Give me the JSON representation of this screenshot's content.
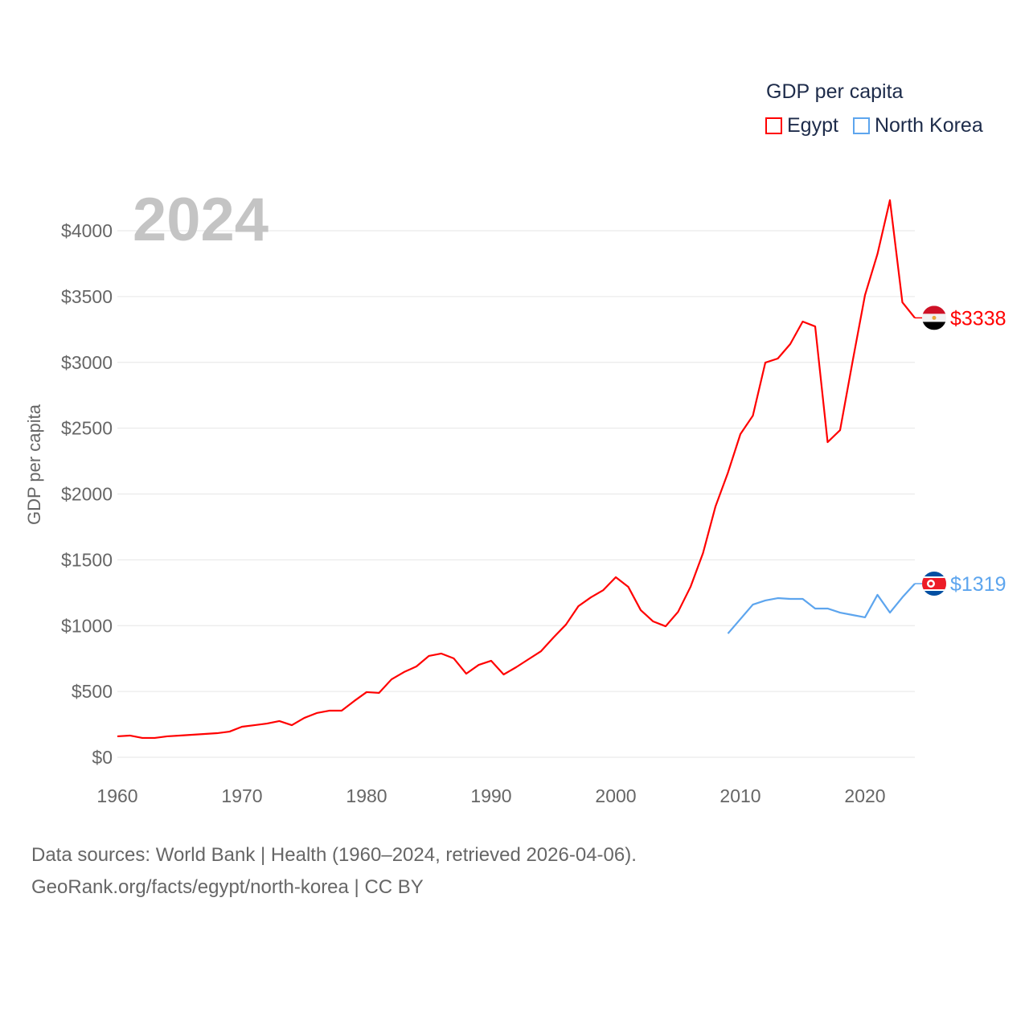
{
  "chart_data": {
    "type": "line",
    "title": "GDP per capita",
    "year_label": "2024",
    "ylabel": "GDP per capita",
    "xlabel": "",
    "xlim": [
      1960,
      2024
    ],
    "ylim": [
      0,
      4000
    ],
    "x_ticks": [
      1960,
      1970,
      1980,
      1990,
      2000,
      2010,
      2020
    ],
    "y_ticks": [
      0,
      500,
      1000,
      1500,
      2000,
      2500,
      3000,
      3500,
      4000
    ],
    "y_tick_labels": [
      "$0",
      "$500",
      "$1000",
      "$1500",
      "$2000",
      "$2500",
      "$3000",
      "$3500",
      "$4000"
    ],
    "grid": true,
    "legend_position": "top-right",
    "series": [
      {
        "name": "Egypt",
        "color": "#ff0000",
        "end_label": "$3338",
        "start_year": 1960,
        "values": [
          159,
          165,
          147,
          147,
          159,
          165,
          171,
          177,
          183,
          195,
          232,
          244,
          256,
          275,
          244,
          299,
          336,
          354,
          354,
          427,
          495,
          489,
          592,
          647,
          690,
          770,
          788,
          751,
          635,
          702,
          733,
          629,
          684,
          745,
          806,
          910,
          1008,
          1148,
          1215,
          1270,
          1368,
          1295,
          1118,
          1032,
          995,
          1105,
          1295,
          1551,
          1905,
          2162,
          2455,
          2595,
          2998,
          3029,
          3139,
          3310,
          3273,
          2394,
          2485,
          3005,
          3511,
          3823,
          4232,
          3456,
          3338
        ]
      },
      {
        "name": "North Korea",
        "color": "#5da5ee",
        "end_label": "$1319",
        "start_year": 2009,
        "values": [
          940,
          1050,
          1160,
          1191,
          1209,
          1203,
          1203,
          1130,
          1130,
          1099,
          1081,
          1063,
          1234,
          1099,
          1215,
          1319
        ]
      }
    ]
  },
  "footer": {
    "line1": "Data sources: World Bank | Health (1960–2024, retrieved 2026-04-06).",
    "line2": "GeoRank.org/facts/egypt/north-korea | CC BY"
  }
}
